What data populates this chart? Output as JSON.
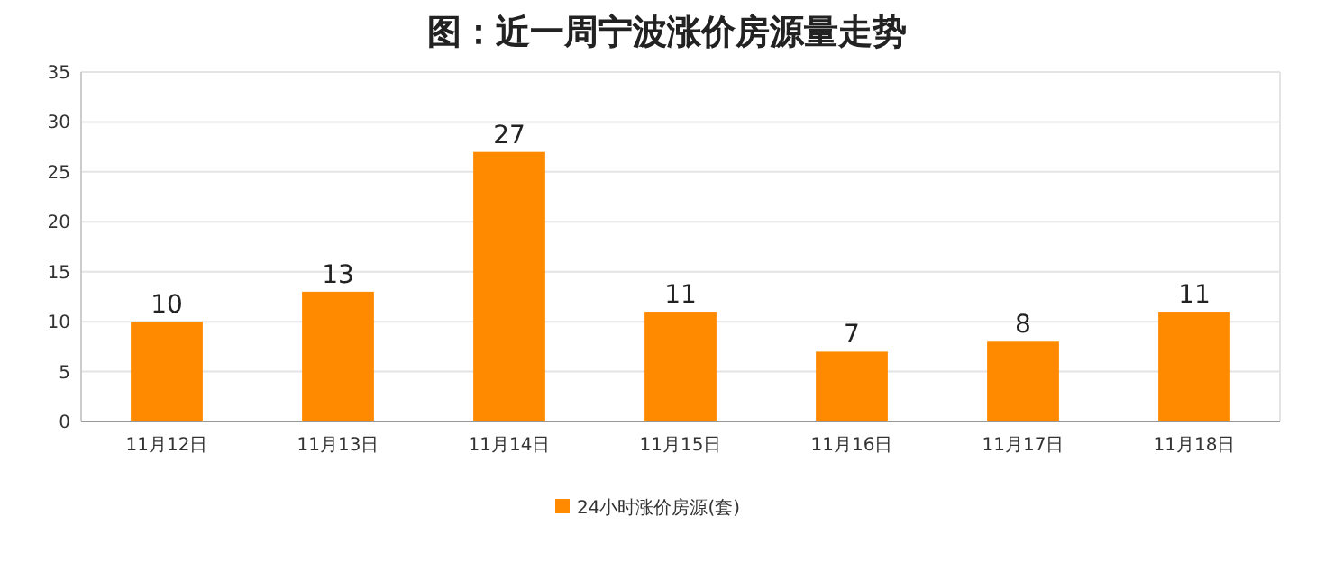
{
  "chart_data": {
    "type": "bar",
    "title": "图：近一周宁波涨价房源量走势",
    "categories": [
      "11月12日",
      "11月13日",
      "11月14日",
      "11月15日",
      "11月16日",
      "11月17日",
      "11月18日"
    ],
    "series": [
      {
        "name": "24小时涨价房源(套)",
        "color": "#ff8a00",
        "values": [
          10,
          13,
          27,
          11,
          7,
          8,
          11
        ]
      }
    ],
    "ylim": [
      0,
      35
    ],
    "yticks": [
      0,
      5,
      10,
      15,
      20,
      25,
      30,
      35
    ],
    "grid": "y",
    "legend": "bottom",
    "data_labels": true
  }
}
